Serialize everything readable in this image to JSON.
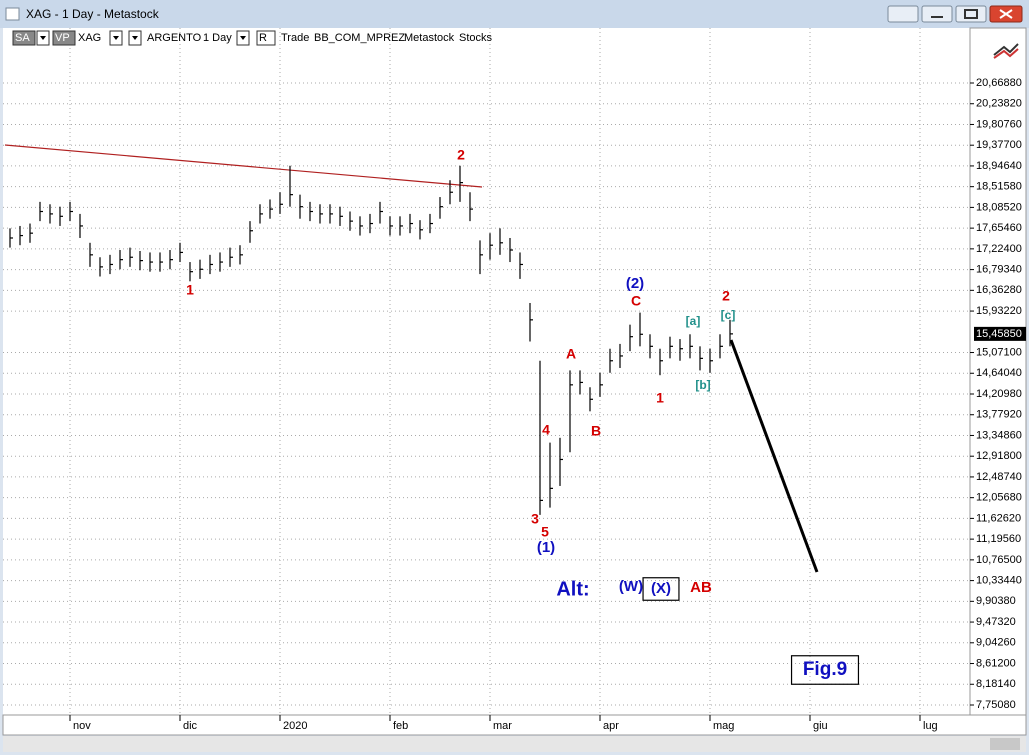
{
  "window": {
    "title": "XAG - 1 Day - Metastock"
  },
  "toolbar": {
    "items": [
      "SA",
      "VP",
      "XAG",
      "ARGENTO",
      "1 Day",
      "R",
      "Trade",
      "BB_COM_MPREZ",
      "Metastock",
      "Stocks"
    ]
  },
  "chart_data": {
    "type": "ohlc",
    "color": "#000000",
    "grid": true,
    "categories": [
      null,
      null,
      null,
      null,
      null,
      null,
      "nov",
      null,
      null,
      null,
      null,
      null,
      null,
      null,
      null,
      null,
      null,
      "dic",
      null,
      null,
      null,
      null,
      null,
      null,
      null,
      null,
      null,
      "2020",
      null,
      null,
      null,
      null,
      null,
      null,
      null,
      null,
      null,
      null,
      "feb",
      null,
      null,
      null,
      null,
      null,
      null,
      null,
      null,
      null,
      "mar",
      null,
      null,
      null,
      null,
      null,
      null,
      null,
      null,
      null,
      null,
      "apr",
      null,
      null,
      null,
      null,
      null,
      null,
      null,
      null,
      null,
      null,
      "mag",
      null,
      null,
      null,
      null,
      null,
      null,
      null,
      null,
      null,
      "giu",
      null,
      null,
      null,
      null,
      null,
      null,
      null,
      null,
      null,
      null,
      "lug",
      null,
      null,
      null,
      null
    ],
    "series": [
      {
        "name": "High",
        "values": [
          17.65,
          17.7,
          17.75,
          18.2,
          18.15,
          18.1,
          18.2,
          17.95,
          17.35,
          17.05,
          17.1,
          17.2,
          17.25,
          17.18,
          17.15,
          17.15,
          17.2,
          17.35,
          16.95,
          17.0,
          17.1,
          17.15,
          17.25,
          17.3,
          17.8,
          18.15,
          18.25,
          18.4,
          18.95,
          18.35,
          18.2,
          18.15,
          18.15,
          18.1,
          18.0,
          17.9,
          17.95,
          18.2,
          17.9,
          17.9,
          17.95,
          17.82,
          17.95,
          18.3,
          18.65,
          18.95,
          18.4,
          17.4,
          17.55,
          17.65,
          17.45,
          17.15,
          16.1,
          14.9,
          13.2,
          13.3,
          14.7,
          14.7,
          14.35,
          14.65,
          15.15,
          15.25,
          15.65,
          15.9,
          15.45,
          15.15,
          15.4,
          15.35,
          15.45,
          15.2,
          15.15,
          15.45,
          15.75,
          null,
          null,
          null,
          null,
          null,
          null,
          null,
          null,
          null,
          null,
          null,
          null,
          null,
          null,
          null,
          null,
          null,
          null,
          null,
          null,
          null,
          null,
          null
        ]
      },
      {
        "name": "Low",
        "values": [
          17.25,
          17.3,
          17.35,
          17.8,
          17.75,
          17.7,
          17.8,
          17.45,
          16.85,
          16.65,
          16.7,
          16.8,
          16.85,
          16.78,
          16.75,
          16.75,
          16.8,
          16.95,
          16.55,
          16.6,
          16.7,
          16.75,
          16.85,
          16.9,
          17.35,
          17.75,
          17.85,
          17.95,
          18.1,
          17.85,
          17.8,
          17.75,
          17.75,
          17.7,
          17.6,
          17.5,
          17.55,
          17.75,
          17.5,
          17.5,
          17.55,
          17.42,
          17.55,
          17.85,
          18.15,
          18.2,
          17.8,
          16.7,
          17.0,
          17.1,
          16.95,
          16.6,
          15.3,
          11.7,
          11.85,
          12.3,
          13.0,
          14.2,
          13.85,
          14.15,
          14.65,
          14.75,
          15.1,
          15.2,
          14.95,
          14.6,
          14.95,
          14.9,
          14.95,
          14.7,
          14.65,
          14.95,
          15.2,
          null,
          null,
          null,
          null,
          null,
          null,
          null,
          null,
          null,
          null,
          null,
          null,
          null,
          null,
          null,
          null,
          null,
          null,
          null,
          null,
          null,
          null,
          null
        ]
      },
      {
        "name": "Close",
        "values": [
          17.45,
          17.5,
          17.55,
          18.0,
          17.95,
          17.9,
          18.0,
          17.7,
          17.1,
          16.85,
          16.9,
          17.0,
          17.05,
          16.98,
          16.95,
          16.95,
          17.0,
          17.15,
          16.75,
          16.8,
          16.9,
          16.95,
          17.05,
          17.1,
          17.6,
          17.95,
          18.05,
          18.15,
          18.35,
          18.1,
          18.0,
          17.95,
          17.95,
          17.9,
          17.8,
          17.7,
          17.75,
          18.0,
          17.7,
          17.7,
          17.75,
          17.62,
          17.75,
          18.1,
          18.4,
          18.6,
          18.05,
          17.1,
          17.3,
          17.35,
          17.2,
          16.9,
          15.75,
          12.0,
          12.25,
          12.85,
          14.4,
          14.45,
          14.1,
          14.4,
          14.9,
          15.0,
          15.4,
          15.45,
          15.2,
          14.9,
          15.2,
          15.15,
          15.2,
          14.95,
          14.9,
          15.2,
          15.4585,
          null,
          null,
          null,
          null,
          null,
          null,
          null,
          null,
          null,
          null,
          null,
          null,
          null,
          null,
          null,
          null,
          null,
          null,
          null,
          null,
          null,
          null,
          null
        ]
      }
    ],
    "ylim": [
      7.543,
      21.811
    ],
    "yticks": [
      {
        "value": 20.6688,
        "label": "20,66880"
      },
      {
        "value": 20.2382,
        "label": "20,23820"
      },
      {
        "value": 19.8076,
        "label": "19,80760"
      },
      {
        "value": 19.377,
        "label": "19,37700"
      },
      {
        "value": 18.9464,
        "label": "18,94640"
      },
      {
        "value": 18.5158,
        "label": "18,51580"
      },
      {
        "value": 18.0852,
        "label": "18,08520"
      },
      {
        "value": 17.6546,
        "label": "17,65460"
      },
      {
        "value": 17.224,
        "label": "17,22400"
      },
      {
        "value": 16.7934,
        "label": "16,79340"
      },
      {
        "value": 16.3628,
        "label": "16,36280"
      },
      {
        "value": 15.9322,
        "label": "15,93220"
      },
      {
        "value": 15.071,
        "label": "15,07100"
      },
      {
        "value": 14.6404,
        "label": "14,64040"
      },
      {
        "value": 14.2098,
        "label": "14,20980"
      },
      {
        "value": 13.7792,
        "label": "13,77920"
      },
      {
        "value": 13.3486,
        "label": "13,34860"
      },
      {
        "value": 12.918,
        "label": "12,91800"
      },
      {
        "value": 12.4874,
        "label": "12,48740"
      },
      {
        "value": 12.0568,
        "label": "12,05680"
      },
      {
        "value": 11.6262,
        "label": "11,62620"
      },
      {
        "value": 11.1956,
        "label": "11,19560"
      },
      {
        "value": 10.765,
        "label": "10,76500"
      },
      {
        "value": 10.3344,
        "label": "10,33440"
      },
      {
        "value": 9.9038,
        "label": "9,90380"
      },
      {
        "value": 9.4732,
        "label": "9,47320"
      },
      {
        "value": 9.0426,
        "label": "9,04260"
      },
      {
        "value": 8.612,
        "label": "8,61200"
      },
      {
        "value": 8.1814,
        "label": "8,18140"
      },
      {
        "value": 7.7508,
        "label": "7,75080"
      }
    ],
    "last_price": {
      "value": 15.4585,
      "label": "15,45850"
    },
    "annotations": [
      {
        "text": "1",
        "color": "#d40000"
      },
      {
        "text": "2",
        "color": "#d40000"
      },
      {
        "text": "3",
        "color": "#d40000"
      },
      {
        "text": "4",
        "color": "#d40000"
      },
      {
        "text": "5",
        "color": "#d40000"
      },
      {
        "text": "(1)",
        "color": "#1010c0"
      },
      {
        "text": "A",
        "color": "#d40000"
      },
      {
        "text": "B",
        "color": "#d40000"
      },
      {
        "text": "(2)",
        "color": "#1010c0"
      },
      {
        "text": "C",
        "color": "#d40000"
      },
      {
        "text": "1",
        "color": "#d40000"
      },
      {
        "text": "[a]",
        "color": "#20908a"
      },
      {
        "text": "[b]",
        "color": "#20908a"
      },
      {
        "text": "[c]",
        "color": "#20908a"
      },
      {
        "text": "2",
        "color": "#d40000"
      },
      {
        "text": "Alt:",
        "color": "#1010c0"
      },
      {
        "text": "(W)",
        "color": "#1010c0"
      },
      {
        "text": "(X)",
        "color": "#1010c0",
        "boxed": true
      },
      {
        "text": "AB",
        "color": "#d40000"
      },
      {
        "text": "Fig.9",
        "color": "#1010c0",
        "boxed": true
      }
    ]
  }
}
